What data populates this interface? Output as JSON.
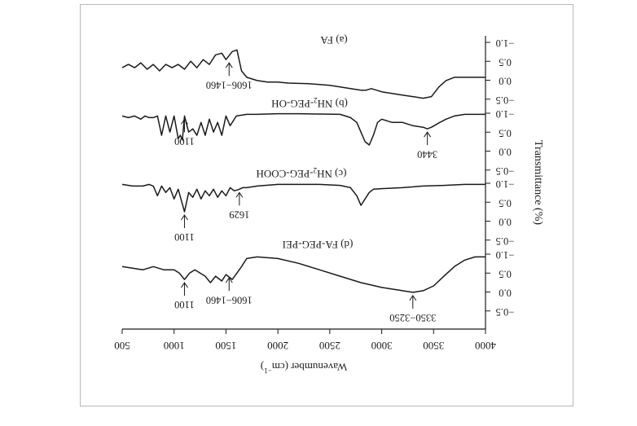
{
  "chart_data": {
    "type": "line",
    "mirrored": true,
    "xlabel": "Wavenumber (cm",
    "xlabel_sup": "−1",
    "xlabel_tail": ")",
    "ylabel": "Transmittance (%)",
    "xlim": [
      500,
      4000
    ],
    "x_ticks": [
      "500",
      "1000",
      "1500",
      "2000",
      "2500",
      "3000",
      "3500",
      "4000"
    ],
    "line_color": "#1a1a1a",
    "panels": [
      {
        "name": "(a) FA",
        "name_parts": [
          "(a) FA"
        ],
        "ylim": [
          -1.0,
          1.0
        ],
        "y_ticks": [
          "−1.0",
          "0.5",
          "0.0",
          "−0.5"
        ],
        "x": [
          500,
          560,
          620,
          680,
          740,
          800,
          860,
          920,
          980,
          1040,
          1100,
          1160,
          1220,
          1280,
          1340,
          1400,
          1460,
          1500,
          1560,
          1606,
          1650,
          1700,
          1800,
          1900,
          2000,
          2100,
          2300,
          2500,
          2700,
          2800,
          2850,
          2900,
          2950,
          3000,
          3100,
          3200,
          3300,
          3400,
          3480,
          3550,
          3620,
          3700,
          3800,
          4000
        ],
        "values": [
          -0.2,
          -0.3,
          -0.2,
          -0.35,
          -0.15,
          -0.3,
          -0.1,
          -0.3,
          -0.2,
          -0.3,
          -0.15,
          -0.4,
          -0.2,
          -0.45,
          -0.3,
          -0.6,
          -0.65,
          -0.45,
          -0.7,
          -0.75,
          -0.1,
          0.1,
          0.2,
          0.25,
          0.25,
          0.28,
          0.3,
          0.35,
          0.45,
          0.5,
          0.5,
          0.45,
          0.5,
          0.55,
          0.6,
          0.65,
          0.7,
          0.75,
          0.7,
          0.4,
          0.2,
          0.1,
          0.1,
          0.1
        ],
        "annotations": [
          {
            "text": "1606−1460",
            "x": 1530
          }
        ]
      },
      {
        "name": "(b) NH",
        "name_parts": [
          "(b) NH",
          "2",
          "-PEG-OH"
        ],
        "ylim": [
          -1.0,
          1.0
        ],
        "y_ticks": [
          "−1.0",
          "0.5",
          "0.0",
          "−0.5"
        ],
        "x": [
          500,
          560,
          620,
          680,
          720,
          760,
          800,
          840,
          880,
          920,
          960,
          1000,
          1040,
          1060,
          1080,
          1100,
          1140,
          1180,
          1220,
          1260,
          1300,
          1340,
          1380,
          1420,
          1460,
          1500,
          1540,
          1600,
          1700,
          1800,
          2000,
          2200,
          2400,
          2600,
          2700,
          2760,
          2800,
          2840,
          2880,
          2920,
          2960,
          3000,
          3100,
          3200,
          3300,
          3400,
          3440,
          3480,
          3560,
          3620,
          3700,
          3800,
          3900,
          4000
        ],
        "values": [
          -0.9,
          -0.85,
          -0.9,
          -0.8,
          -0.9,
          -0.85,
          -0.85,
          -0.9,
          -0.3,
          -0.9,
          -0.4,
          -0.9,
          -0.2,
          -0.3,
          -0.15,
          -0.9,
          -0.4,
          -0.5,
          -0.3,
          -0.7,
          -0.3,
          -0.8,
          -0.4,
          -0.7,
          -0.3,
          -0.9,
          -0.6,
          -0.9,
          -0.95,
          -0.95,
          -0.97,
          -0.97,
          -0.96,
          -0.95,
          -0.85,
          -0.7,
          -0.4,
          -0.1,
          0.0,
          -0.3,
          -0.7,
          -0.8,
          -0.7,
          -0.7,
          -0.6,
          -0.55,
          -0.5,
          -0.55,
          -0.7,
          -0.8,
          -0.9,
          -0.95,
          -0.95,
          -0.95
        ],
        "annotations": [
          {
            "text": "1100",
            "x": 1100
          },
          {
            "text": "3440",
            "x": 3440
          }
        ]
      },
      {
        "name": "(c) NH",
        "name_parts": [
          "(c) NH",
          "2",
          "-PEG-COOH"
        ],
        "ylim": [
          -1.0,
          1.0
        ],
        "y_ticks": [
          "−1.0",
          "0.5",
          "0.0",
          "−0.5"
        ],
        "x": [
          500,
          600,
          700,
          760,
          800,
          840,
          880,
          920,
          960,
          1000,
          1040,
          1100,
          1140,
          1180,
          1220,
          1260,
          1300,
          1340,
          1380,
          1420,
          1460,
          1500,
          1540,
          1580,
          1629,
          1660,
          1700,
          1800,
          2000,
          2200,
          2400,
          2600,
          2700,
          2760,
          2800,
          2840,
          2880,
          2920,
          3000,
          3200,
          3400,
          3600,
          3800,
          4000
        ],
        "values": [
          -0.95,
          -0.9,
          -0.9,
          -0.95,
          -0.9,
          -0.6,
          -0.9,
          -0.7,
          -0.85,
          -0.5,
          -0.8,
          -0.1,
          -0.7,
          -0.55,
          -0.8,
          -0.5,
          -0.75,
          -0.6,
          -0.8,
          -0.55,
          -0.75,
          -0.6,
          -0.85,
          -0.75,
          -0.8,
          -0.85,
          -0.85,
          -0.9,
          -0.95,
          -0.95,
          -0.95,
          -0.92,
          -0.85,
          -0.6,
          -0.3,
          -0.5,
          -0.7,
          -0.8,
          -0.82,
          -0.85,
          -0.9,
          -0.92,
          -0.95,
          -0.95
        ],
        "annotations": [
          {
            "text": "1100",
            "x": 1100
          },
          {
            "text": "1629",
            "x": 1629
          }
        ]
      },
      {
        "name": "(d) FA-PEG-PEI",
        "name_parts": [
          "(d) FA-PEG-PEI"
        ],
        "ylim": [
          -1.0,
          1.0
        ],
        "y_ticks": [
          "−1.0",
          "0.5",
          "0.0",
          "−0.5"
        ],
        "x": [
          500,
          600,
          700,
          800,
          900,
          1000,
          1050,
          1100,
          1150,
          1200,
          1300,
          1350,
          1400,
          1460,
          1500,
          1560,
          1606,
          1650,
          1700,
          1800,
          2000,
          2200,
          2400,
          2600,
          2800,
          3000,
          3200,
          3300,
          3400,
          3500,
          3600,
          3700,
          3800,
          3900,
          4000
        ],
        "values": [
          -0.6,
          -0.55,
          -0.5,
          -0.6,
          -0.5,
          -0.5,
          -0.4,
          -0.2,
          -0.4,
          -0.5,
          -0.3,
          -0.1,
          -0.3,
          -0.15,
          -0.35,
          -0.2,
          -0.4,
          -0.6,
          -0.85,
          -0.9,
          -0.85,
          -0.7,
          -0.5,
          -0.3,
          -0.1,
          0.05,
          0.15,
          0.2,
          0.15,
          0.0,
          -0.3,
          -0.6,
          -0.8,
          -0.9,
          -0.9
        ],
        "annotations": [
          {
            "text": "1100",
            "x": 1100
          },
          {
            "text": "1606−1460",
            "x": 1530
          },
          {
            "text": "3350−3250",
            "x": 3300
          }
        ]
      }
    ]
  }
}
